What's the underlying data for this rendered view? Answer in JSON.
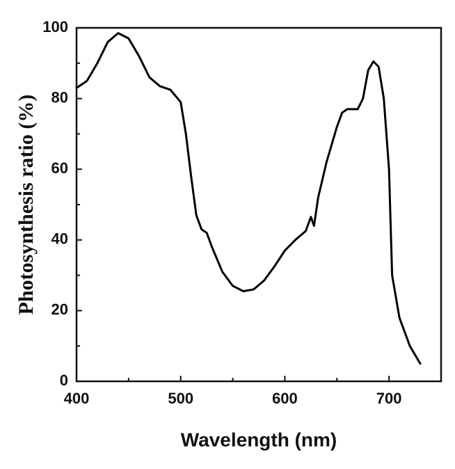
{
  "chart_data": {
    "type": "line",
    "x_label": "Wavelength (nm)",
    "y_label": "Photosynthesis ratio (%)",
    "x": [
      400,
      410,
      420,
      430,
      440,
      450,
      460,
      470,
      480,
      490,
      500,
      505,
      510,
      515,
      520,
      525,
      530,
      540,
      550,
      560,
      570,
      580,
      590,
      600,
      610,
      620,
      625,
      628,
      632,
      640,
      650,
      655,
      660,
      670,
      675,
      680,
      685,
      690,
      695,
      700,
      703,
      710,
      720,
      730
    ],
    "series": [
      {
        "name": "Photosynthesis ratio",
        "color": "#000000",
        "values": [
          83,
          85,
          90,
          96,
          98.5,
          97,
          92,
          86,
          83.5,
          82.5,
          79,
          70,
          58,
          47,
          43,
          42,
          38,
          31,
          27,
          25.5,
          26,
          28.5,
          32.5,
          37,
          40,
          42.5,
          46.5,
          44,
          52,
          62,
          72,
          76,
          77,
          77,
          80,
          88,
          90.5,
          89,
          80,
          60,
          30,
          18,
          10,
          5
        ]
      }
    ],
    "xlim": [
      400,
      750
    ],
    "xticks": [
      400,
      500,
      600,
      700
    ],
    "xminorticks": [
      450,
      550,
      650,
      750
    ],
    "ylim": [
      0,
      100
    ],
    "yticks": [
      0,
      20,
      40,
      60,
      80,
      100
    ],
    "yminorticks": [
      10,
      30,
      50,
      70,
      90
    ],
    "grid": false
  }
}
